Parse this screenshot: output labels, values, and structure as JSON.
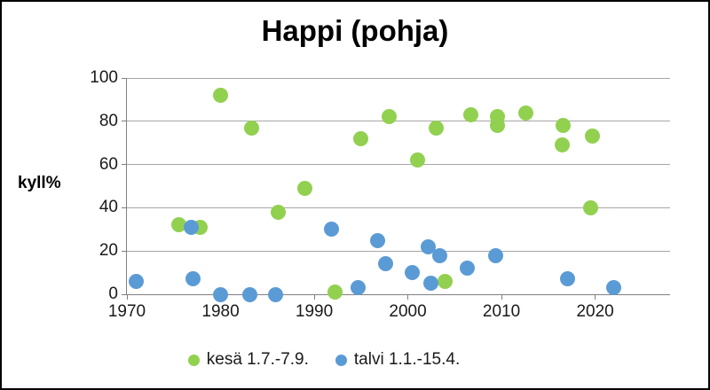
{
  "colors": {
    "kesa_green": "#92d050",
    "talvi_blue": "#5b9bd5",
    "gridline": "#a6a6a6",
    "axis": "#808080",
    "tick_text": "#1a1a1a",
    "border": "#000000",
    "background": "#ffffff"
  },
  "chart_data": {
    "type": "scatter",
    "title": "Happi (pohja)",
    "xlabel": "",
    "ylabel": "kyll%",
    "xlim": [
      1970,
      2028
    ],
    "ylim": [
      0,
      100
    ],
    "xticks": [
      1970,
      1980,
      1990,
      2000,
      2010,
      2020
    ],
    "yticks": [
      0,
      20,
      40,
      60,
      80,
      100
    ],
    "grid": "horizontal",
    "legend_position": "bottom",
    "series": [
      {
        "name": "kesä 1.7.-7.9.",
        "color": "#92d050",
        "points": [
          [
            1975.5,
            32
          ],
          [
            1977.8,
            31
          ],
          [
            1980,
            92
          ],
          [
            1983.3,
            77
          ],
          [
            1986.2,
            38
          ],
          [
            1989,
            49
          ],
          [
            1992.2,
            1
          ],
          [
            1995,
            72
          ],
          [
            1998,
            82
          ],
          [
            2001,
            62
          ],
          [
            2003,
            77
          ],
          [
            2004,
            6
          ],
          [
            2006.7,
            83
          ],
          [
            2009.6,
            82
          ],
          [
            2009.6,
            78
          ],
          [
            2012.6,
            84
          ],
          [
            2016.5,
            69
          ],
          [
            2016.6,
            78
          ],
          [
            2019.5,
            40
          ],
          [
            2019.7,
            73
          ]
        ]
      },
      {
        "name": "talvi 1.1.-15.4.",
        "color": "#5b9bd5",
        "points": [
          [
            1971,
            6
          ],
          [
            1976.9,
            31
          ],
          [
            1977.1,
            7
          ],
          [
            1980,
            0
          ],
          [
            1983.1,
            0
          ],
          [
            1985.9,
            0
          ],
          [
            1991.8,
            30
          ],
          [
            1994.7,
            3
          ],
          [
            1996.8,
            25
          ],
          [
            1997.6,
            14
          ],
          [
            2000.5,
            10
          ],
          [
            2002.2,
            22
          ],
          [
            2002.5,
            5
          ],
          [
            2003.4,
            18
          ],
          [
            2006.3,
            12
          ],
          [
            2009.4,
            18
          ],
          [
            2017.1,
            7
          ],
          [
            2022,
            3
          ]
        ]
      }
    ]
  }
}
